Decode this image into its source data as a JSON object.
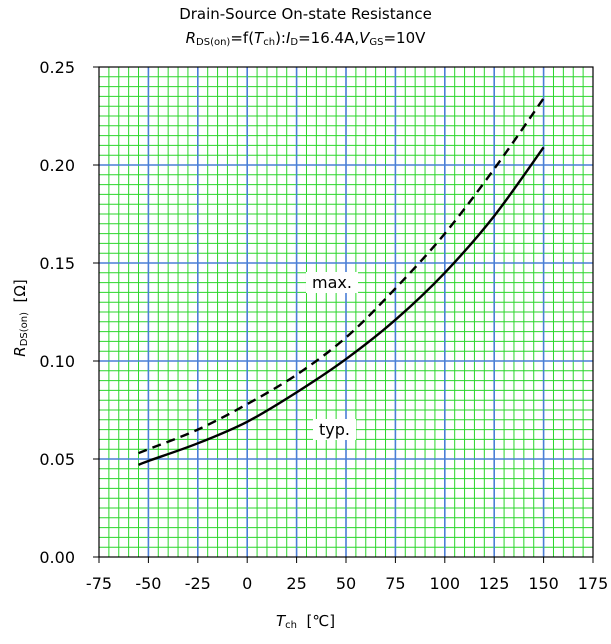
{
  "chart_data": {
    "type": "line",
    "title": "Drain-Source On-state Resistance",
    "subtitle": {
      "y_symbol": "R",
      "y_sub": "DS(on)",
      "mid": "=f(",
      "t_symbol": "T",
      "t_sub": "ch",
      "cond_open": "):",
      "i_symbol": "I",
      "i_sub": "D",
      "i_val": "=16.4A,",
      "v_symbol": "V",
      "v_sub": "GS",
      "v_val": "=10V"
    },
    "xlabel": {
      "symbol": "T",
      "sub": "ch",
      "unit": "[℃]"
    },
    "ylabel": {
      "symbol": "R",
      "sub": "DS(on)",
      "unit": "[Ω]"
    },
    "xlim": [
      -75,
      175
    ],
    "ylim": [
      0,
      0.25
    ],
    "x_ticks": [
      "-75",
      "-50",
      "-25",
      "0",
      "25",
      "50",
      "75",
      "100",
      "125",
      "150",
      "175"
    ],
    "y_ticks": [
      "0.00",
      "0.05",
      "0.10",
      "0.15",
      "0.20",
      "0.25"
    ],
    "grid": true,
    "colors": {
      "major_grid": "#4a7fd6",
      "minor_grid": "#2bd62b",
      "series": "#000000"
    },
    "series": [
      {
        "name": "max.",
        "style": "dashed",
        "x": [
          -55,
          -50,
          -25,
          0,
          25,
          50,
          75,
          100,
          125,
          150
        ],
        "y": [
          0.053,
          0.055,
          0.065,
          0.078,
          0.093,
          0.112,
          0.137,
          0.165,
          0.198,
          0.234
        ]
      },
      {
        "name": "typ.",
        "style": "solid",
        "x": [
          -55,
          -50,
          -25,
          0,
          25,
          50,
          75,
          100,
          125,
          150
        ],
        "y": [
          0.047,
          0.049,
          0.058,
          0.069,
          0.084,
          0.101,
          0.121,
          0.145,
          0.174,
          0.209
        ]
      }
    ]
  }
}
